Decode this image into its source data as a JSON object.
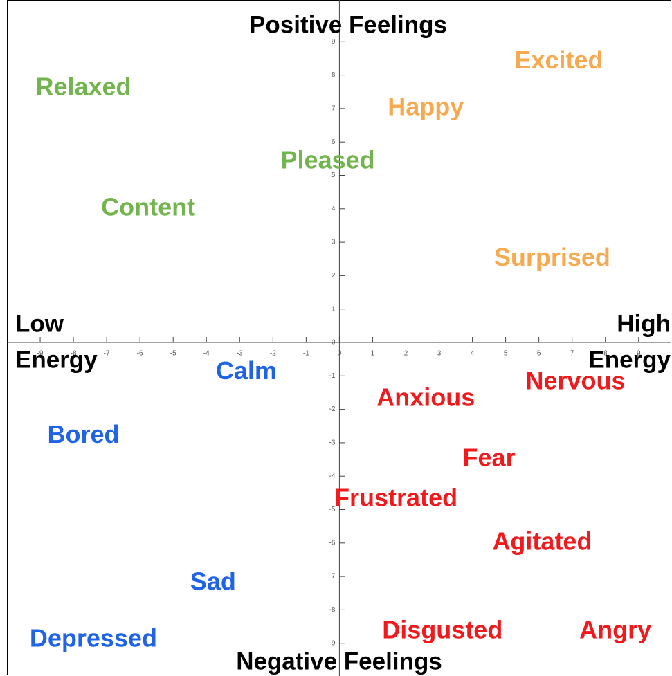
{
  "chart_data": {
    "type": "scatter",
    "top_label": "Positive Feelings",
    "bottom_label": "Negative Feelings",
    "left_label": [
      "Low",
      "Energy"
    ],
    "right_label": [
      "High",
      "Energy"
    ],
    "xlim": [
      -10,
      9.9
    ],
    "ylim": [
      -10,
      10
    ],
    "xticks": [
      -9,
      -8,
      -7,
      -6,
      -5,
      -4,
      -3,
      -2,
      -1,
      0,
      1,
      2,
      3,
      4,
      5,
      6,
      7,
      8,
      9
    ],
    "yticks": [
      -9,
      -8,
      -7,
      -6,
      -5,
      -4,
      -3,
      -2,
      -1,
      0,
      1,
      2,
      3,
      4,
      5,
      6,
      7,
      8,
      9
    ],
    "points": [
      {
        "label": "Relaxed",
        "x": -7.7,
        "y": 7.6,
        "color": "#72b54e"
      },
      {
        "label": "Excited",
        "x": 6.6,
        "y": 8.4,
        "color": "#f7a950"
      },
      {
        "label": "Happy",
        "x": 2.6,
        "y": 7.0,
        "color": "#f7a950"
      },
      {
        "label": "Pleased",
        "x": -0.35,
        "y": 5.4,
        "color": "#72b54e"
      },
      {
        "label": "Content",
        "x": -5.75,
        "y": 4.0,
        "color": "#72b54e"
      },
      {
        "label": "Surprised",
        "x": 6.4,
        "y": 2.5,
        "color": "#f7a950"
      },
      {
        "label": "Calm",
        "x": -2.8,
        "y": -0.9,
        "color": "#1f63e6"
      },
      {
        "label": "Nervous",
        "x": 7.1,
        "y": -1.2,
        "color": "#f0191c"
      },
      {
        "label": "Anxious",
        "x": 2.6,
        "y": -1.7,
        "color": "#f0191c"
      },
      {
        "label": "Bored",
        "x": -7.7,
        "y": -2.8,
        "color": "#1f63e6"
      },
      {
        "label": "Fear",
        "x": 4.5,
        "y": -3.5,
        "color": "#f0191c"
      },
      {
        "label": "Frustrated",
        "x": 1.7,
        "y": -4.7,
        "color": "#f0191c"
      },
      {
        "label": "Agitated",
        "x": 6.1,
        "y": -6.0,
        "color": "#f0191c"
      },
      {
        "label": "Sad",
        "x": -3.8,
        "y": -7.2,
        "color": "#1f63e6"
      },
      {
        "label": "Disgusted",
        "x": 3.1,
        "y": -8.65,
        "color": "#f0191c"
      },
      {
        "label": "Angry",
        "x": 8.3,
        "y": -8.65,
        "color": "#f0191c"
      },
      {
        "label": "Depressed",
        "x": -7.4,
        "y": -8.9,
        "color": "#1f63e6"
      }
    ]
  }
}
